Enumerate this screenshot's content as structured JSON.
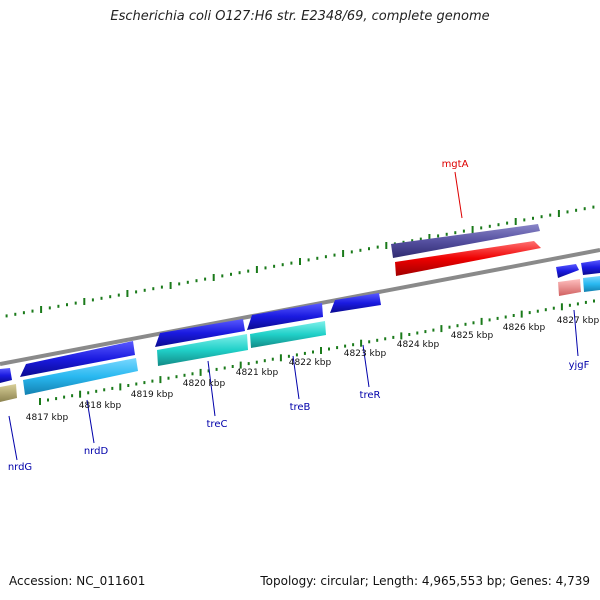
{
  "title": "Escherichia coli O127:H6 str. E2348/69, complete genome",
  "footer": {
    "accession": "Accession: NC_011601",
    "summary": "Topology: circular; Length: 4,965,553 bp; Genes: 4,739"
  },
  "scale_labels": [
    "4817 kbp",
    "4818 kbp",
    "4819 kbp",
    "4820 kbp",
    "4821 kbp",
    "4822 kbp",
    "4823 kbp",
    "4824 kbp",
    "4825 kbp",
    "4826 kbp",
    "4827 kbp"
  ],
  "genes": [
    {
      "name": "mgtA",
      "color": "#dd0000"
    },
    {
      "name": "nrdG",
      "color": "#0000aa"
    },
    {
      "name": "nrdD",
      "color": "#0000aa"
    },
    {
      "name": "treC",
      "color": "#0000aa"
    },
    {
      "name": "treB",
      "color": "#0000aa"
    },
    {
      "name": "treR",
      "color": "#0000aa"
    },
    {
      "name": "yjgF",
      "color": "#0000aa"
    }
  ],
  "colors": {
    "backbone": "#8a8a8a",
    "tick_mark": "#1a7a1a",
    "cds_forward": "#5550a0",
    "gene_forward": "#ee0000",
    "cds_reverse": "#1a1ae0",
    "gene_reverse_blue": "#29b8f0",
    "gene_reverse_teal": "#20d0c8",
    "gene_olive": "#b8ad70",
    "gene_pink": "#f09090"
  }
}
